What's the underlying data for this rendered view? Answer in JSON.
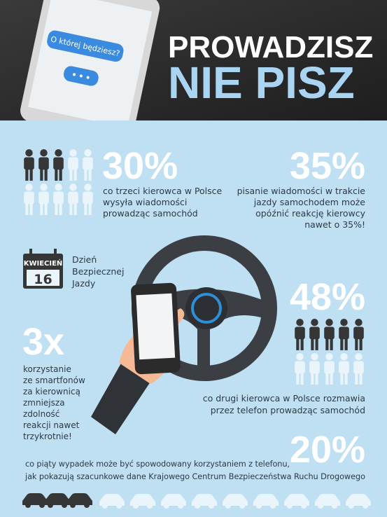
{
  "header": {
    "title_line1": "PROWADZISZ",
    "title_line2": "NIE PISZ",
    "phone_message": "O której będziesz?"
  },
  "stats": [
    {
      "value": "30%",
      "lines": [
        "co trzeci kierowca w Polsce",
        "wysyła wiadomości",
        "prowadząc samochód"
      ]
    },
    {
      "value": "35%",
      "lines": [
        "pisanie wiadomości w trakcie",
        "jazdy samochodem może",
        "opóźnić reakcję kierowcy",
        "nawet o 35%!"
      ]
    },
    {
      "value": "48%",
      "lines": [
        "co drugi kierowca w Polsce rozmawia",
        "przez telefon prowadząc samochód"
      ]
    },
    {
      "value": "3x",
      "lines": [
        "korzystanie",
        "ze smartfonów",
        "za kierownicą",
        "zmniejsza",
        "zdolność",
        "reakcji nawet",
        "trzykrotnie!"
      ]
    },
    {
      "value": "20%",
      "lines": [
        "co piąty wypadek może być spowodowany korzystaniem z telefonu,",
        "jak pokazują szacunkowe dane Krajowego Centrum Bezpieczeństwa Ruchu Drogowego"
      ]
    }
  ],
  "calendar": {
    "month": "KWIECIEŃ",
    "day": "16",
    "lines": [
      "Dzień",
      "Bezpiecznej",
      "Jazdy"
    ]
  }
}
